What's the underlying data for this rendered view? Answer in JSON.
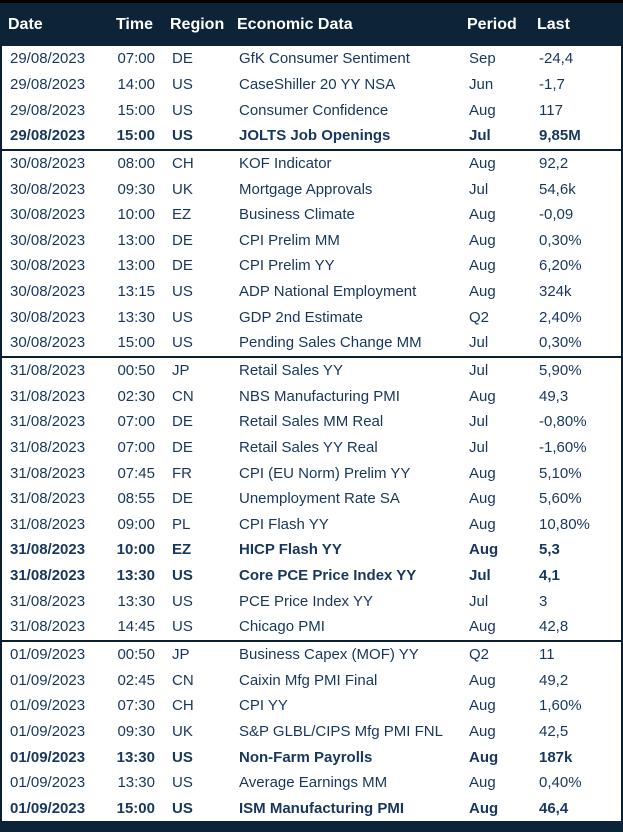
{
  "colors": {
    "header_bg": "#0d2438",
    "header_text": "#ffffff",
    "row_text": "#17375e",
    "border": "#0b1f33"
  },
  "table": {
    "headers": {
      "date": "Date",
      "time": "Time",
      "region": "Region",
      "economic_data": "Economic Data",
      "period": "Period",
      "last": "Last"
    },
    "rows": [
      {
        "date": "29/08/2023",
        "time": "07:00",
        "region": "DE",
        "economic_data": "GfK Consumer Sentiment",
        "period": "Sep",
        "last": "-24,4",
        "bold": false,
        "group_start": false
      },
      {
        "date": "29/08/2023",
        "time": "14:00",
        "region": "US",
        "economic_data": "CaseShiller 20 YY NSA",
        "period": "Jun",
        "last": "-1,7",
        "bold": false,
        "group_start": false
      },
      {
        "date": "29/08/2023",
        "time": "15:00",
        "region": "US",
        "economic_data": "Consumer Confidence",
        "period": "Aug",
        "last": "117",
        "bold": false,
        "group_start": false
      },
      {
        "date": "29/08/2023",
        "time": "15:00",
        "region": "US",
        "economic_data": "JOLTS Job Openings",
        "period": "Jul",
        "last": "9,85M",
        "bold": true,
        "group_start": false
      },
      {
        "date": "30/08/2023",
        "time": "08:00",
        "region": "CH",
        "economic_data": "KOF Indicator",
        "period": "Aug",
        "last": "92,2",
        "bold": false,
        "group_start": true
      },
      {
        "date": "30/08/2023",
        "time": "09:30",
        "region": "UK",
        "economic_data": "Mortgage Approvals",
        "period": "Jul",
        "last": "54,6k",
        "bold": false,
        "group_start": false
      },
      {
        "date": "30/08/2023",
        "time": "10:00",
        "region": "EZ",
        "economic_data": "Business Climate",
        "period": "Aug",
        "last": "-0,09",
        "bold": false,
        "group_start": false
      },
      {
        "date": "30/08/2023",
        "time": "13:00",
        "region": "DE",
        "economic_data": "CPI Prelim MM",
        "period": "Aug",
        "last": "0,30%",
        "bold": false,
        "group_start": false
      },
      {
        "date": "30/08/2023",
        "time": "13:00",
        "region": "DE",
        "economic_data": "CPI Prelim YY",
        "period": "Aug",
        "last": "6,20%",
        "bold": false,
        "group_start": false
      },
      {
        "date": "30/08/2023",
        "time": "13:15",
        "region": "US",
        "economic_data": "ADP National Employment",
        "period": "Aug",
        "last": "324k",
        "bold": false,
        "group_start": false
      },
      {
        "date": "30/08/2023",
        "time": "13:30",
        "region": "US",
        "economic_data": "GDP 2nd Estimate",
        "period": "Q2",
        "last": "2,40%",
        "bold": false,
        "group_start": false
      },
      {
        "date": "30/08/2023",
        "time": "15:00",
        "region": "US",
        "economic_data": "Pending Sales Change MM",
        "period": "Jul",
        "last": "0,30%",
        "bold": false,
        "group_start": false
      },
      {
        "date": "31/08/2023",
        "time": "00:50",
        "region": "JP",
        "economic_data": "Retail Sales YY",
        "period": "Jul",
        "last": "5,90%",
        "bold": false,
        "group_start": true
      },
      {
        "date": "31/08/2023",
        "time": "02:30",
        "region": "CN",
        "economic_data": "NBS Manufacturing PMI",
        "period": "Aug",
        "last": "49,3",
        "bold": false,
        "group_start": false
      },
      {
        "date": "31/08/2023",
        "time": "07:00",
        "region": "DE",
        "economic_data": "Retail Sales MM Real",
        "period": "Jul",
        "last": "-0,80%",
        "bold": false,
        "group_start": false
      },
      {
        "date": "31/08/2023",
        "time": "07:00",
        "region": "DE",
        "economic_data": "Retail Sales YY Real",
        "period": "Jul",
        "last": "-1,60%",
        "bold": false,
        "group_start": false
      },
      {
        "date": "31/08/2023",
        "time": "07:45",
        "region": "FR",
        "economic_data": "CPI (EU Norm) Prelim YY",
        "period": "Aug",
        "last": "5,10%",
        "bold": false,
        "group_start": false
      },
      {
        "date": "31/08/2023",
        "time": "08:55",
        "region": "DE",
        "economic_data": "Unemployment Rate SA",
        "period": "Aug",
        "last": "5,60%",
        "bold": false,
        "group_start": false
      },
      {
        "date": "31/08/2023",
        "time": "09:00",
        "region": "PL",
        "economic_data": "CPI Flash YY",
        "period": "Aug",
        "last": "10,80%",
        "bold": false,
        "group_start": false
      },
      {
        "date": "31/08/2023",
        "time": "10:00",
        "region": "EZ",
        "economic_data": "HICP Flash YY",
        "period": "Aug",
        "last": "5,3",
        "bold": true,
        "group_start": false
      },
      {
        "date": "31/08/2023",
        "time": "13:30",
        "region": "US",
        "economic_data": "Core PCE Price Index YY",
        "period": "Jul",
        "last": "4,1",
        "bold": true,
        "group_start": false
      },
      {
        "date": "31/08/2023",
        "time": "13:30",
        "region": "US",
        "economic_data": "PCE Price Index YY",
        "period": "Jul",
        "last": "3",
        "bold": false,
        "group_start": false
      },
      {
        "date": "31/08/2023",
        "time": "14:45",
        "region": "US",
        "economic_data": "Chicago PMI",
        "period": "Aug",
        "last": "42,8",
        "bold": false,
        "group_start": false
      },
      {
        "date": "01/09/2023",
        "time": "00:50",
        "region": "JP",
        "economic_data": "Business Capex (MOF) YY",
        "period": "Q2",
        "last": "11",
        "bold": false,
        "group_start": true
      },
      {
        "date": "01/09/2023",
        "time": "02:45",
        "region": "CN",
        "economic_data": "Caixin Mfg PMI Final",
        "period": "Aug",
        "last": "49,2",
        "bold": false,
        "group_start": false
      },
      {
        "date": "01/09/2023",
        "time": "07:30",
        "region": "CH",
        "economic_data": "CPI YY",
        "period": "Aug",
        "last": "1,60%",
        "bold": false,
        "group_start": false
      },
      {
        "date": "01/09/2023",
        "time": "09:30",
        "region": "UK",
        "economic_data": "S&P GLBL/CIPS Mfg PMI FNL",
        "period": "Aug",
        "last": "42,5",
        "bold": false,
        "group_start": false
      },
      {
        "date": "01/09/2023",
        "time": "13:30",
        "region": "US",
        "economic_data": "Non-Farm Payrolls",
        "period": "Aug",
        "last": "187k",
        "bold": true,
        "group_start": false
      },
      {
        "date": "01/09/2023",
        "time": "13:30",
        "region": "US",
        "economic_data": "Average Earnings MM",
        "period": "Aug",
        "last": "0,40%",
        "bold": false,
        "group_start": false
      },
      {
        "date": "01/09/2023",
        "time": "15:00",
        "region": "US",
        "economic_data": "ISM Manufacturing PMI",
        "period": "Aug",
        "last": "46,4",
        "bold": true,
        "group_start": false
      }
    ]
  }
}
